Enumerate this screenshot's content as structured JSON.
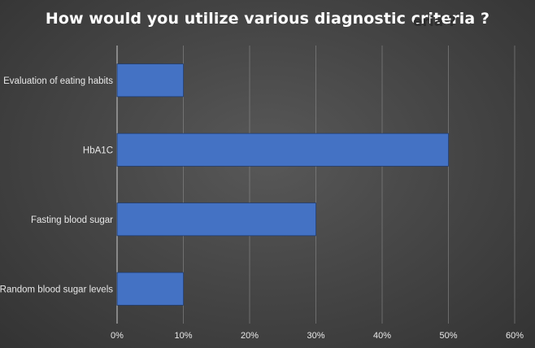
{
  "chart_data": {
    "type": "bar",
    "orientation": "horizontal",
    "title": "How would you utilize various diagnostic criteria ?",
    "title_echo": "eria ?",
    "xlabel": "",
    "ylabel": "",
    "categories": [
      "Evaluation of eating habits",
      "HbA1C",
      "Fasting blood sugar",
      "Random blood sugar levels"
    ],
    "values": [
      10,
      50,
      30,
      10
    ],
    "xlim": [
      0,
      60
    ],
    "xticks": [
      0,
      10,
      20,
      30,
      40,
      50,
      60
    ],
    "tick_labels": [
      "0%",
      "10%",
      "20%",
      "30%",
      "40%",
      "50%",
      "60%"
    ],
    "unit": "%",
    "grid": "vertical",
    "legend": "none",
    "colors": {
      "bar_fill": "#4472c4",
      "bar_edge": "#1f3d73",
      "gridline": "#8c8c8c",
      "text": "#e8e8e8"
    }
  }
}
